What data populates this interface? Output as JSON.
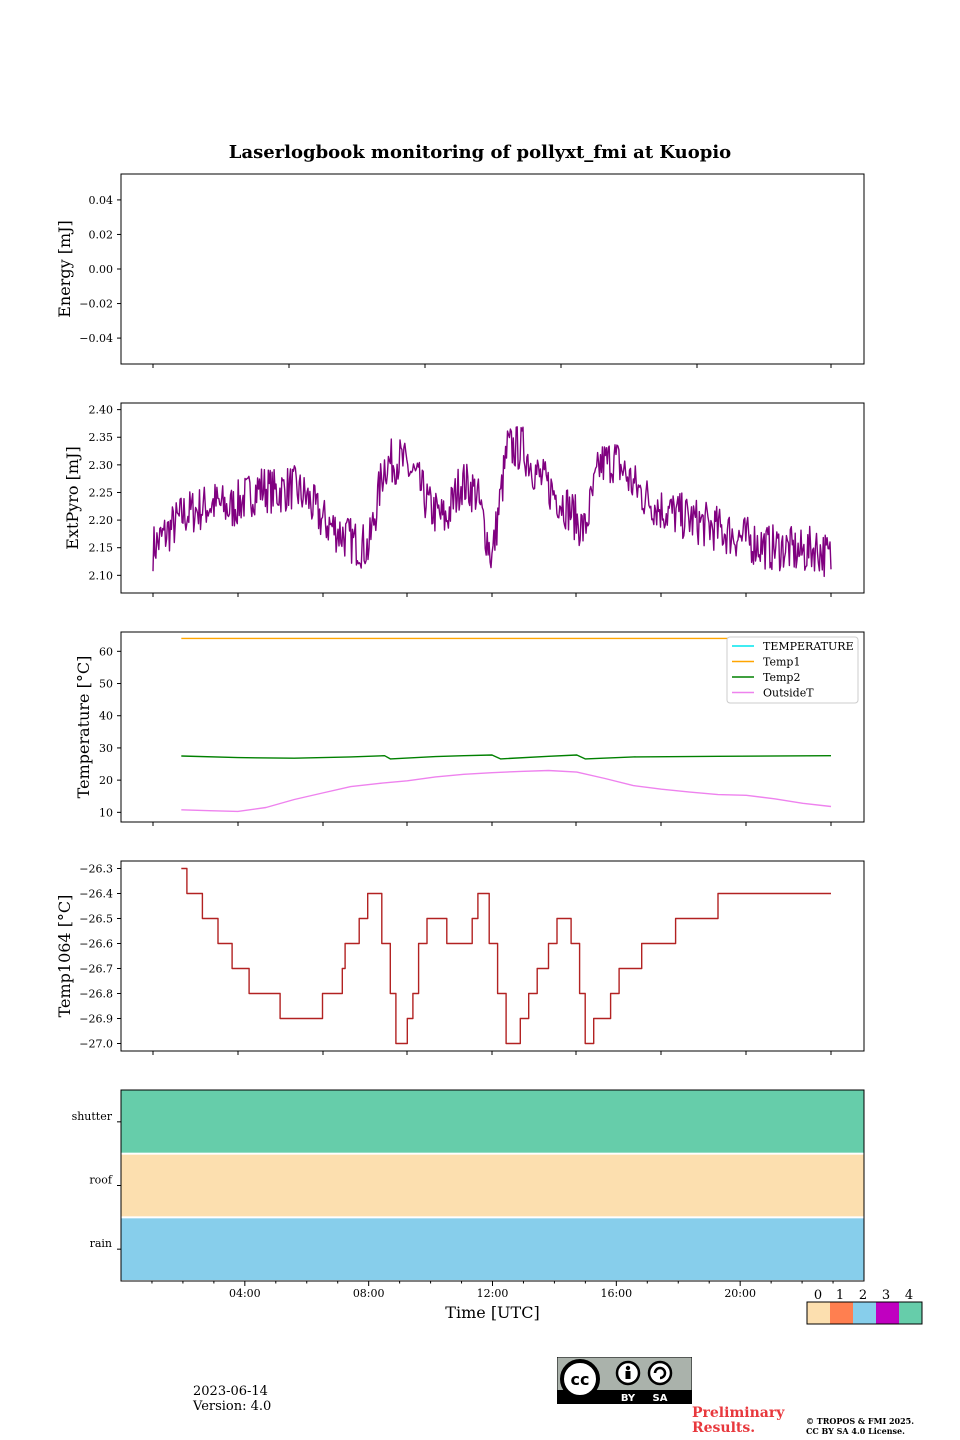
{
  "title": "Laserlogbook monitoring of pollyxt_fmi at Kuopio",
  "chart_data": [
    {
      "type": "line",
      "ylabel": "Energy [mJ]",
      "ylim": [
        -0.055,
        0.055
      ],
      "yticks": [
        -0.04,
        -0.02,
        0.0,
        0.02,
        0.04
      ],
      "ytick_labels": [
        "−0.04",
        "−0.02",
        "0.00",
        "0.02",
        "0.04"
      ],
      "xlim": [
        0,
        24
      ],
      "xticks": [
        1,
        5,
        9,
        13,
        17,
        21
      ],
      "series": []
    },
    {
      "type": "line",
      "ylabel": "ExtPyro [mJ]",
      "ylim": [
        2.068,
        2.412
      ],
      "yticks": [
        2.1,
        2.15,
        2.2,
        2.25,
        2.3,
        2.35,
        2.4
      ],
      "ytick_labels": [
        "2.10",
        "2.15",
        "2.20",
        "2.25",
        "2.30",
        "2.35",
        "2.40"
      ],
      "xlim": [
        0,
        22
      ],
      "xticks": [
        1,
        4,
        7,
        10,
        13,
        16,
        19,
        22
      ],
      "series": [
        {
          "name": "ExtPyro",
          "color": "#800080",
          "x": [
            0,
            0.5,
            1,
            1.5,
            2,
            2.5,
            3,
            3.5,
            4,
            4.5,
            5,
            5.5,
            6,
            6.5,
            7,
            7.5,
            8,
            8.5,
            9,
            9.5,
            10,
            10.5,
            11,
            11.5,
            12,
            12.5,
            13,
            13.5,
            14,
            14.5,
            15,
            15.5,
            16,
            16.5,
            17,
            17.5,
            18,
            18.5,
            19,
            19.5,
            20,
            20.5,
            21,
            21.5,
            22
          ],
          "values": [
            2.15,
            2.18,
            2.21,
            2.22,
            2.23,
            2.22,
            2.24,
            2.26,
            2.25,
            2.26,
            2.24,
            2.2,
            2.18,
            2.16,
            2.15,
            2.3,
            2.31,
            2.28,
            2.22,
            2.2,
            2.27,
            2.25,
            2.13,
            2.33,
            2.33,
            2.28,
            2.25,
            2.22,
            2.18,
            2.3,
            2.31,
            2.27,
            2.24,
            2.22,
            2.21,
            2.2,
            2.19,
            2.18,
            2.17,
            2.16,
            2.15,
            2.15,
            2.14,
            2.15,
            2.13
          ]
        }
      ]
    },
    {
      "type": "line",
      "ylabel": "Temperature [°C]",
      "ylim": [
        7,
        66
      ],
      "yticks": [
        10,
        20,
        30,
        40,
        50,
        60
      ],
      "ytick_labels": [
        "10",
        "20",
        "30",
        "40",
        "50",
        "60"
      ],
      "xlim": [
        0,
        24
      ],
      "xticks": [
        1,
        5,
        9,
        13,
        17,
        21
      ],
      "legend_position": "top-right",
      "series": [
        {
          "name": "TEMPERATURE",
          "color": "#00e5ee",
          "x": [],
          "values": []
        },
        {
          "name": "Temp1",
          "color": "#ffa500",
          "x": [
            1,
            24
          ],
          "values": [
            64,
            64
          ]
        },
        {
          "name": "Temp2",
          "color": "#008000",
          "x": [
            1,
            3,
            5,
            7,
            8.2,
            8.4,
            10,
            11,
            12,
            12.3,
            14,
            15,
            15.3,
            17,
            20,
            24
          ],
          "values": [
            27.5,
            27.0,
            26.8,
            27.2,
            27.6,
            26.6,
            27.3,
            27.6,
            27.8,
            26.6,
            27.4,
            27.8,
            26.6,
            27.2,
            27.4,
            27.6
          ]
        },
        {
          "name": "OutsideT",
          "color": "#ee82ee",
          "x": [
            1,
            2,
            3,
            4,
            5,
            6,
            7,
            8,
            9,
            10,
            11,
            12,
            13,
            14,
            15,
            16,
            17,
            18,
            19,
            20,
            21,
            22,
            23,
            24
          ],
          "values": [
            10.8,
            10.5,
            10.3,
            11.5,
            14.0,
            16.0,
            18.0,
            19.0,
            19.8,
            21.0,
            21.8,
            22.3,
            22.7,
            23.0,
            22.5,
            20.5,
            18.3,
            17.2,
            16.3,
            15.5,
            15.3,
            14.2,
            12.8,
            11.8
          ]
        }
      ]
    },
    {
      "type": "line",
      "ylabel": "Temp1064 [°C]",
      "ylim": [
        -27.03,
        -26.27
      ],
      "yticks": [
        -27.0,
        -26.9,
        -26.8,
        -26.7,
        -26.6,
        -26.5,
        -26.4,
        -26.3
      ],
      "ytick_labels": [
        "−27.0",
        "−26.9",
        "−26.8",
        "−26.7",
        "−26.6",
        "−26.5",
        "−26.4",
        "−26.3"
      ],
      "xlim": [
        0,
        24
      ],
      "xticks": [
        1,
        4,
        7,
        10,
        13,
        16,
        19,
        22
      ],
      "series": [
        {
          "name": "Temp1064",
          "color": "#b22222",
          "x": [
            1,
            1.15,
            1.2,
            1.7,
            1.75,
            2.2,
            2.3,
            2.7,
            2.8,
            3.3,
            3.4,
            4.4,
            4.5,
            5.5,
            6.0,
            6.1,
            6.7,
            6.8,
            7.2,
            7.3,
            7.6,
            7.9,
            8.1,
            8.4,
            8.6,
            8.8,
            9.0,
            9.2,
            9.4,
            9.7,
            10.2,
            10.4,
            10.6,
            11.3,
            11.5,
            11.6,
            11.9,
            12.2,
            12.5,
            12.7,
            13.0,
            13.3,
            13.6,
            14.0,
            14.3,
            14.5,
            14.8,
            15.1,
            15.3,
            15.5,
            15.6,
            16.2,
            16.5,
            16.8,
            17.3,
            17.6,
            18.5,
            19.2,
            20.0,
            21.0,
            22.3,
            23.0,
            24.0
          ],
          "values": [
            -26.3,
            -26.3,
            -26.4,
            -26.4,
            -26.5,
            -26.5,
            -26.6,
            -26.6,
            -26.7,
            -26.7,
            -26.8,
            -26.8,
            -26.9,
            -26.9,
            -26.8,
            -26.8,
            -26.7,
            -26.6,
            -26.6,
            -26.5,
            -26.4,
            -26.4,
            -26.6,
            -26.8,
            -27.0,
            -27.0,
            -26.9,
            -26.8,
            -26.6,
            -26.5,
            -26.5,
            -26.6,
            -26.6,
            -26.5,
            -26.4,
            -26.4,
            -26.6,
            -26.8,
            -27.0,
            -27.0,
            -26.9,
            -26.8,
            -26.7,
            -26.6,
            -26.5,
            -26.5,
            -26.6,
            -26.8,
            -27.0,
            -27.0,
            -26.9,
            -26.8,
            -26.7,
            -26.7,
            -26.6,
            -26.6,
            -26.5,
            -26.5,
            -26.4,
            -26.4,
            -26.4,
            -26.4,
            -26.4
          ]
        }
      ]
    },
    {
      "type": "heatmap",
      "rows": [
        "shutter",
        "roof",
        "rain"
      ],
      "row_values": [
        4,
        0,
        2
      ],
      "xlabel": "Time [UTC]",
      "xtick_labels": [
        "04:00",
        "08:00",
        "12:00",
        "16:00",
        "20:00"
      ],
      "xtick_hours": [
        4,
        8,
        12,
        16,
        20
      ],
      "xlim_hours": [
        0,
        24
      ],
      "colorbar": {
        "labels": [
          "0",
          "1",
          "2",
          "3",
          "4"
        ],
        "colors": [
          "#fcdfaf",
          "#ff7f50",
          "#87ceeb",
          "#c000c0",
          "#66cdaa"
        ]
      }
    }
  ],
  "footer": {
    "date": "2023-06-14",
    "version": "Version: 4.0",
    "license_badge": [
      "BY",
      "SA"
    ],
    "license_logo_text": "cc",
    "preliminary": [
      "Preliminary",
      "Results."
    ],
    "copyright": [
      "© TROPOS & FMI 2025.",
      "CC BY SA 4.0 License."
    ]
  }
}
